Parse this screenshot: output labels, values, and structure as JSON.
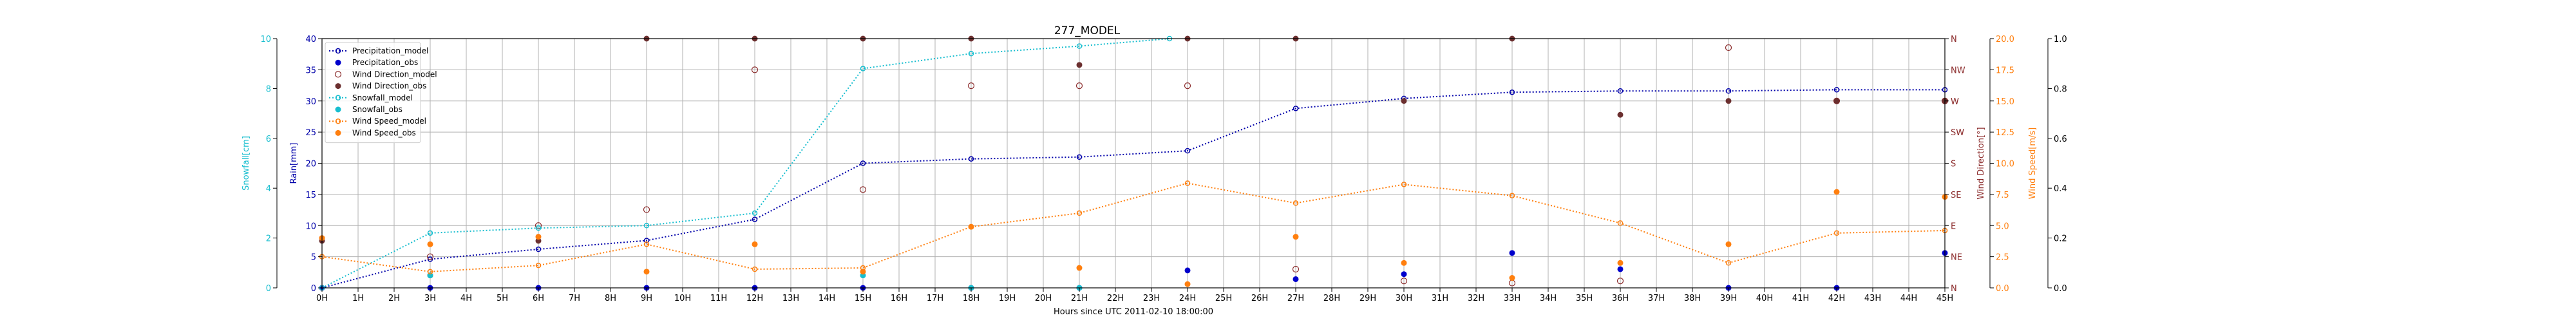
{
  "chart_data": {
    "type": "line",
    "title": "277_MODEL",
    "xlabel": "Hours since UTC 2011-02-10 18:00:00",
    "x_ticks": [
      "0H",
      "1H",
      "2H",
      "3H",
      "4H",
      "5H",
      "6H",
      "7H",
      "8H",
      "9H",
      "10H",
      "11H",
      "12H",
      "13H",
      "14H",
      "15H",
      "16H",
      "17H",
      "18H",
      "19H",
      "20H",
      "21H",
      "22H",
      "23H",
      "24H",
      "25H",
      "26H",
      "27H",
      "28H",
      "29H",
      "30H",
      "31H",
      "32H",
      "33H",
      "34H",
      "35H",
      "36H",
      "37H",
      "38H",
      "39H",
      "40H",
      "41H",
      "42H",
      "43H",
      "44H",
      "45H"
    ],
    "xlim": [
      0,
      45
    ],
    "grid": true,
    "legend_position": "top-left",
    "axes": {
      "snowfall": {
        "label": "Snowfall[cm]",
        "ylim": [
          0,
          10
        ],
        "ticks": [
          "0",
          "2",
          "4",
          "6",
          "8",
          "10"
        ],
        "color": "#17becf"
      },
      "rain": {
        "label": "Rain[mm]",
        "ylim": [
          0,
          40
        ],
        "ticks": [
          "0",
          "5",
          "10",
          "15",
          "20",
          "25",
          "30",
          "35",
          "40"
        ],
        "color": "#0000aa"
      },
      "wind_direction": {
        "label": "Wind Direction[°]",
        "ylim": [
          0,
          360
        ],
        "ticks": [
          "N",
          "NE",
          "E",
          "SE",
          "S",
          "SW",
          "W",
          "NW",
          "N"
        ],
        "color": "#8c2d2d"
      },
      "wind_speed": {
        "label": "Wind Speed[m/s]",
        "ylim": [
          0,
          20
        ],
        "ticks": [
          "0.0",
          "2.5",
          "5.0",
          "7.5",
          "10.0",
          "12.5",
          "15.0",
          "17.5",
          "20.0"
        ],
        "color": "#ff7f0e"
      },
      "extra": {
        "ylim": [
          0,
          1
        ],
        "ticks": [
          "0.0",
          "0.2",
          "0.4",
          "0.6",
          "0.8",
          "1.0"
        ]
      }
    },
    "series": [
      {
        "name": "Precipitation_model",
        "axis": "rain",
        "style": "dotted-line-marker",
        "color": "#0000aa",
        "x": [
          0,
          3,
          6,
          9,
          12,
          15,
          18,
          21,
          24,
          27,
          30,
          33,
          36,
          39,
          42,
          45
        ],
        "y": [
          0,
          4.6,
          6.2,
          7.6,
          11,
          20,
          20.7,
          21,
          22,
          28.8,
          30.4,
          31.4,
          31.6,
          31.6,
          31.8,
          31.8
        ]
      },
      {
        "name": "Precipitation_obs",
        "axis": "rain",
        "style": "marker",
        "color": "#0000cc",
        "x": [
          0,
          3,
          6,
          9,
          12,
          15,
          18,
          21,
          24,
          27,
          30,
          33,
          36,
          39,
          42,
          45
        ],
        "y": [
          0,
          0,
          0,
          0,
          0,
          0,
          0,
          0,
          2.8,
          1.4,
          2.2,
          5.6,
          3,
          0,
          0,
          5.6
        ]
      },
      {
        "name": "Wind Direction_model",
        "axis": "wind_direction",
        "style": "open-marker",
        "color": "#8c2d2d",
        "x": [
          3,
          6,
          9,
          12,
          15,
          18,
          21,
          24,
          27,
          30,
          33,
          36,
          39,
          42,
          45
        ],
        "y": [
          45,
          90,
          113,
          315,
          142,
          292,
          292,
          292,
          27,
          10,
          7,
          10,
          347,
          270,
          270
        ]
      },
      {
        "name": "Wind Direction_obs",
        "axis": "wind_direction",
        "style": "marker",
        "color": "#6b2f2f",
        "x": [
          0,
          3,
          6,
          9,
          12,
          15,
          18,
          21,
          24,
          27,
          30,
          33,
          36,
          39,
          42,
          45
        ],
        "y": [
          68,
          18,
          68,
          360,
          360,
          360,
          360,
          322,
          360,
          360,
          270,
          360,
          250,
          270,
          270,
          270
        ]
      },
      {
        "name": "Snowfall_model",
        "axis": "snowfall",
        "style": "dotted-line-marker",
        "color": "#17becf",
        "x": [
          0,
          3,
          6,
          9,
          12,
          15,
          18,
          21,
          23.5
        ],
        "y": [
          0,
          2.2,
          2.4,
          2.5,
          3,
          8.8,
          9.4,
          9.7,
          10
        ]
      },
      {
        "name": "Snowfall_obs",
        "axis": "snowfall",
        "style": "marker",
        "color": "#17becf",
        "x": [
          3,
          15,
          18,
          21
        ],
        "y": [
          0.5,
          0.5,
          0,
          0
        ]
      },
      {
        "name": "Wind Speed_model",
        "axis": "wind_speed",
        "style": "dotted-line-marker",
        "color": "#ff7f0e",
        "x": [
          0,
          3,
          6,
          9,
          12,
          15,
          18,
          21,
          24,
          27,
          30,
          33,
          36,
          39,
          42,
          45
        ],
        "y": [
          2.5,
          1.3,
          1.8,
          3.5,
          1.5,
          1.6,
          4.9,
          6,
          8.4,
          6.8,
          8.3,
          7.4,
          5.2,
          2,
          4.4,
          4.6
        ]
      },
      {
        "name": "Wind Speed_obs",
        "axis": "wind_speed",
        "style": "marker",
        "color": "#ff7f0e",
        "x": [
          0,
          3,
          6,
          9,
          12,
          15,
          18,
          21,
          24,
          27,
          30,
          33,
          36,
          39,
          42,
          45
        ],
        "y": [
          4,
          3.5,
          4.1,
          1.3,
          3.5,
          1.3,
          4.9,
          1.6,
          0.3,
          4.1,
          2,
          0.8,
          2,
          3.5,
          7.7,
          7.3
        ]
      }
    ]
  }
}
